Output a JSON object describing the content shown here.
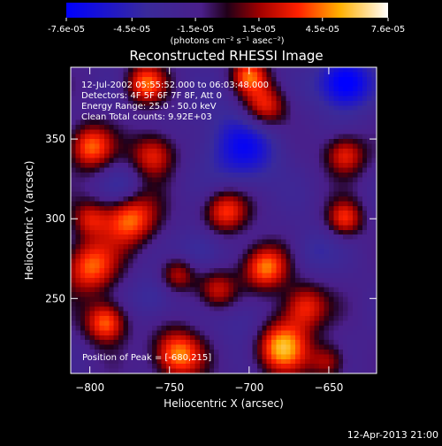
{
  "colorbar": {
    "ticks": [
      "-7.6e-05",
      "-4.5e-05",
      "-1.5e-05",
      "1.5e-05",
      "4.5e-05",
      "7.6e-05"
    ],
    "min": -7.6e-05,
    "max": 7.6e-05,
    "unit_label": "(photons cm⁻² s⁻¹ asec⁻²)"
  },
  "chart_data": {
    "type": "heatmap",
    "title": "Reconstructed RHESSI Image",
    "xlabel": "Heliocentric X (arcsec)",
    "ylabel": "Heliocentric Y (arcsec)",
    "xlim": [
      -812,
      -620
    ],
    "ylim": [
      203,
      395
    ],
    "x_ticks": [
      -800,
      -750,
      -700,
      -650
    ],
    "y_ticks": [
      250,
      300,
      350
    ],
    "colormap": "rainbow-hot (blue-purple-red-yellow-white)",
    "annotations": [
      "12-Jul-2002 05:55:52.000 to 06:03:48.000",
      "Detectors: 4F 5F 6F 7F 8F, Att 0",
      "Energy Range: 25.0 - 50.0 keV",
      "Clean     Total counts: 9.92E+03"
    ],
    "peak_label": "Position of Peak = [-680,215]",
    "peak": [
      -680,
      215
    ],
    "sources": [
      {
        "x": -690,
        "y": 270,
        "v": 0.9,
        "s": 10
      },
      {
        "x": -680,
        "y": 220,
        "v": 1.0,
        "s": 12
      },
      {
        "x": -745,
        "y": 215,
        "v": 0.9,
        "s": 11
      },
      {
        "x": -800,
        "y": 270,
        "v": 0.8,
        "s": 12
      },
      {
        "x": -790,
        "y": 235,
        "v": 0.85,
        "s": 9
      },
      {
        "x": -775,
        "y": 300,
        "v": 0.85,
        "s": 12
      },
      {
        "x": -715,
        "y": 305,
        "v": 0.75,
        "s": 10
      },
      {
        "x": -665,
        "y": 245,
        "v": 0.7,
        "s": 10
      },
      {
        "x": -720,
        "y": 255,
        "v": 0.6,
        "s": 9
      },
      {
        "x": -760,
        "y": 340,
        "v": 0.7,
        "s": 10
      },
      {
        "x": -800,
        "y": 345,
        "v": 0.8,
        "s": 10
      },
      {
        "x": -690,
        "y": 370,
        "v": 0.75,
        "s": 10
      },
      {
        "x": -640,
        "y": 340,
        "v": 0.7,
        "s": 9
      },
      {
        "x": -765,
        "y": 385,
        "v": 0.75,
        "s": 9
      },
      {
        "x": -640,
        "y": 300,
        "v": 0.65,
        "s": 8
      },
      {
        "x": -800,
        "y": 300,
        "v": 0.5,
        "s": 8
      },
      {
        "x": -745,
        "y": 265,
        "v": 0.55,
        "s": 8
      },
      {
        "x": -650,
        "y": 210,
        "v": 0.5,
        "s": 8
      },
      {
        "x": -700,
        "y": 390,
        "v": 0.7,
        "s": 8
      },
      {
        "x": -640,
        "y": 385,
        "v": -0.9,
        "s": 12
      },
      {
        "x": -705,
        "y": 345,
        "v": -0.6,
        "s": 18
      },
      {
        "x": -730,
        "y": 280,
        "v": -0.4,
        "s": 10
      },
      {
        "x": -700,
        "y": 235,
        "v": -0.3,
        "s": 12
      },
      {
        "x": -780,
        "y": 320,
        "v": -0.35,
        "s": 9
      },
      {
        "x": -760,
        "y": 250,
        "v": -0.35,
        "s": 10
      },
      {
        "x": -660,
        "y": 280,
        "v": -0.3,
        "s": 10
      }
    ]
  },
  "footer": {
    "timestamp": "12-Apr-2013 21:00"
  }
}
